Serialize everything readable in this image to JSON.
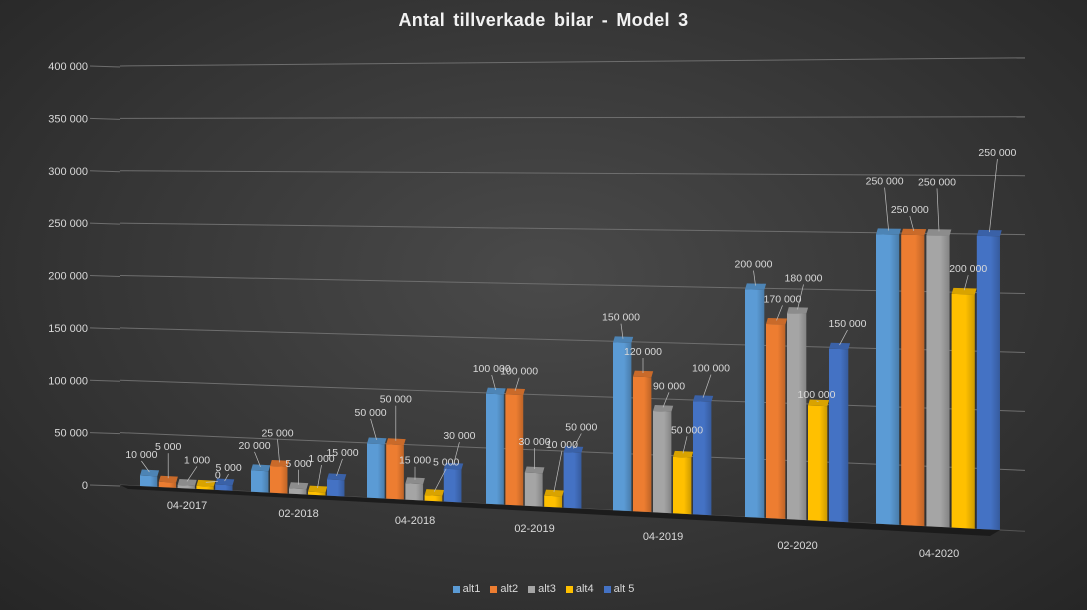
{
  "chart_data": {
    "type": "bar",
    "title": "Antal tillverkade bilar - Model 3",
    "xlabel": "",
    "ylabel": "",
    "ylim": [
      0,
      400000
    ],
    "y_ticks": [
      0,
      50000,
      100000,
      150000,
      200000,
      250000,
      300000,
      350000,
      400000
    ],
    "y_tick_labels": [
      "0",
      "50 000",
      "100 000",
      "150 000",
      "200 000",
      "250 000",
      "300 000",
      "350 000",
      "400 000"
    ],
    "categories": [
      "04-2017",
      "02-2018",
      "04-2018",
      "02-2019",
      "04-2019",
      "02-2020",
      "04-2020"
    ],
    "series": [
      {
        "name": "alt1",
        "color": "#5b9bd5",
        "values": [
          10000,
          20000,
          50000,
          100000,
          150000,
          200000,
          250000
        ],
        "labels": [
          "10 000",
          "20 000",
          "50 000",
          "100 000",
          "150 000",
          "200 000",
          "250 000"
        ]
      },
      {
        "name": "alt2",
        "color": "#ed7d31",
        "values": [
          5000,
          25000,
          50000,
          100000,
          120000,
          170000,
          250000
        ],
        "labels": [
          "5 000",
          "25 000",
          "50 000",
          "100 000",
          "120 000",
          "170 000",
          "250 000"
        ]
      },
      {
        "name": "alt3",
        "color": "#a5a5a5",
        "values": [
          1000,
          5000,
          15000,
          30000,
          90000,
          180000,
          250000
        ],
        "labels": [
          "1 000",
          "5 000",
          "15 000",
          "30 000",
          "90 000",
          "180 000",
          "250 000"
        ]
      },
      {
        "name": "alt4",
        "color": "#ffc000",
        "values": [
          0,
          1000,
          5000,
          10000,
          50000,
          100000,
          200000
        ],
        "labels": [
          "0",
          "1 000",
          "5 000",
          "10 000",
          "50 000",
          "100 000",
          "200 000"
        ]
      },
      {
        "name": "alt 5",
        "color": "#4472c4",
        "values": [
          5000,
          15000,
          30000,
          50000,
          100000,
          150000,
          250000
        ],
        "labels": [
          "5 000",
          "15 000",
          "30 000",
          "50 000",
          "100 000",
          "150 000",
          "250 000"
        ]
      }
    ],
    "legend_position": "bottom",
    "grid": true
  }
}
